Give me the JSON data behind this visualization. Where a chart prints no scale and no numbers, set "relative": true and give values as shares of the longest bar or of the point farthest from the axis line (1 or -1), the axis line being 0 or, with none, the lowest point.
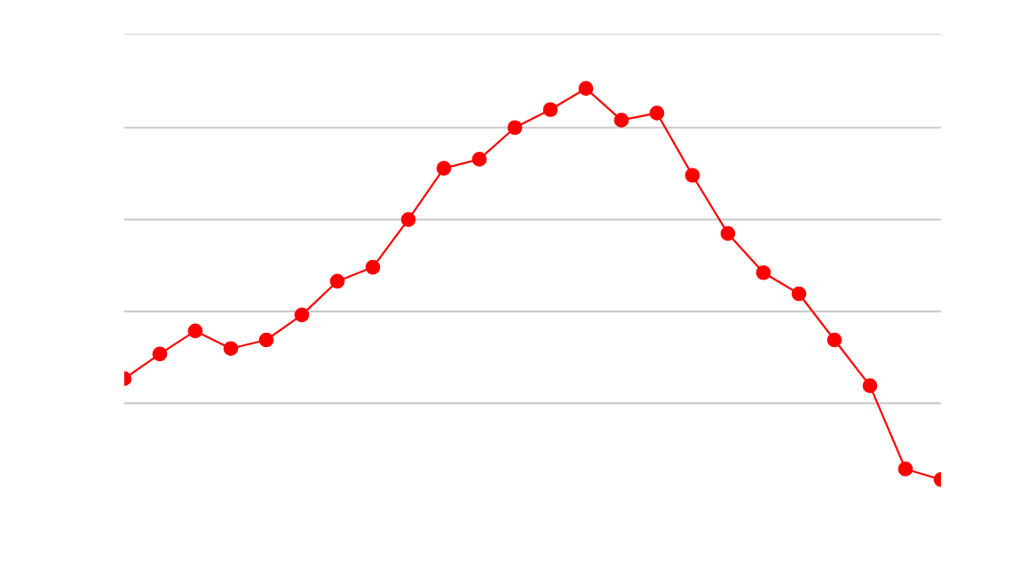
{
  "chart_data": {
    "type": "line",
    "relative": true,
    "grid": "y",
    "marker": "circle",
    "line_style": "solid",
    "categories": [
      null,
      null,
      null,
      null,
      null,
      null,
      null,
      null,
      null,
      null,
      null,
      null,
      null,
      null,
      null,
      null,
      null,
      null,
      null,
      null,
      null,
      null,
      null,
      null
    ],
    "series": [
      {
        "color": "#ff0000",
        "values": [
          0.258,
          0.321,
          0.38,
          0.335,
          0.357,
          0.421,
          0.507,
          0.543,
          0.665,
          0.796,
          0.819,
          0.9,
          0.946,
          1,
          0.919,
          0.937,
          0.778,
          0.629,
          0.529,
          0.475,
          0.357,
          0.24,
          0.027,
          0
        ]
      }
    ]
  }
}
